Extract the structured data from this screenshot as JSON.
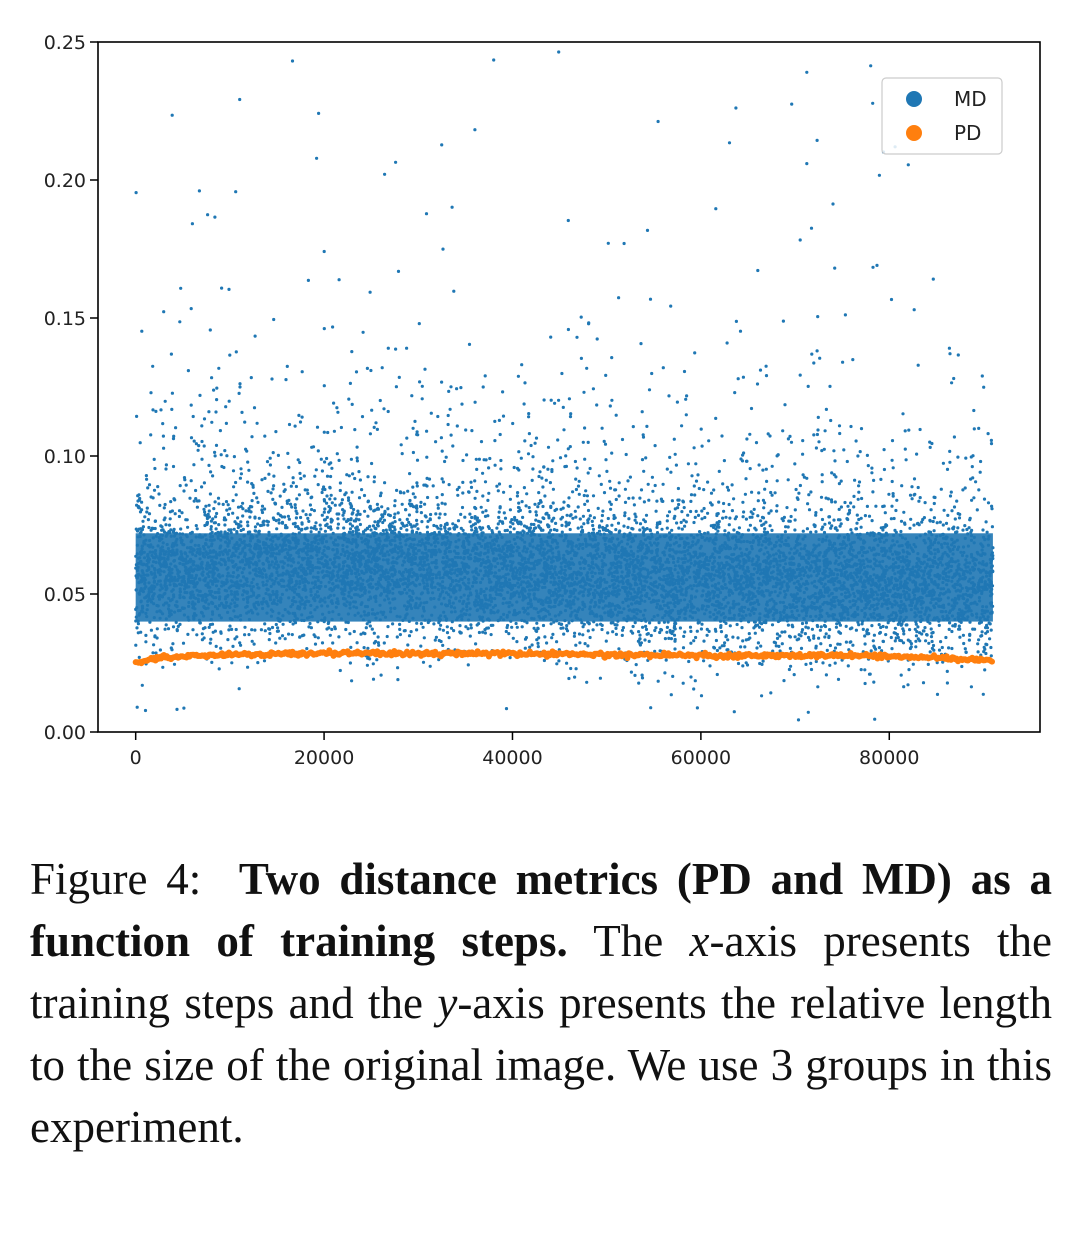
{
  "chart_data": {
    "type": "scatter",
    "xlim": [
      -4000,
      96000
    ],
    "ylim": [
      0,
      0.25
    ],
    "x_ticks": [
      0,
      20000,
      40000,
      60000,
      80000
    ],
    "x_tick_labels": [
      "0",
      "20000",
      "40000",
      "60000",
      "80000"
    ],
    "y_ticks": [
      0.0,
      0.05,
      0.1,
      0.15,
      0.2,
      0.25
    ],
    "y_tick_labels": [
      "0.00",
      "0.05",
      "0.10",
      "0.15",
      "0.20",
      "0.25"
    ],
    "legend_position": "top-right",
    "grid": false,
    "series": [
      {
        "name": "MD",
        "color": "#1f77b4",
        "x_range": [
          0,
          91000
        ],
        "points_description": "dense cloud of many points centered near 0.055, mostly between 0.025 and 0.10, sparse outliers up to 0.25 and down to 0.00",
        "center_by_x": [
          [
            0,
            0.058
          ],
          [
            20000,
            0.06
          ],
          [
            40000,
            0.057
          ],
          [
            60000,
            0.055
          ],
          [
            80000,
            0.054
          ],
          [
            91000,
            0.052
          ]
        ]
      },
      {
        "name": "PD",
        "color": "#ff7f0e",
        "x_range": [
          0,
          91000
        ],
        "values_by_x": [
          [
            0,
            0.025
          ],
          [
            2000,
            0.027
          ],
          [
            10000,
            0.028
          ],
          [
            20000,
            0.0285
          ],
          [
            40000,
            0.0283
          ],
          [
            60000,
            0.0278
          ],
          [
            80000,
            0.0275
          ],
          [
            85000,
            0.027
          ],
          [
            91000,
            0.026
          ]
        ]
      }
    ]
  },
  "caption": {
    "label": "Figure 4:",
    "title": "Two distance metrics (PD and MD) as a function of training steps.",
    "body_1": "The",
    "x_var": "x",
    "body_2": "-axis presents the training steps and the",
    "y_var": "y",
    "body_3": "-axis presents the relative length to the size of the original image. We use 3 groups in this experiment."
  }
}
